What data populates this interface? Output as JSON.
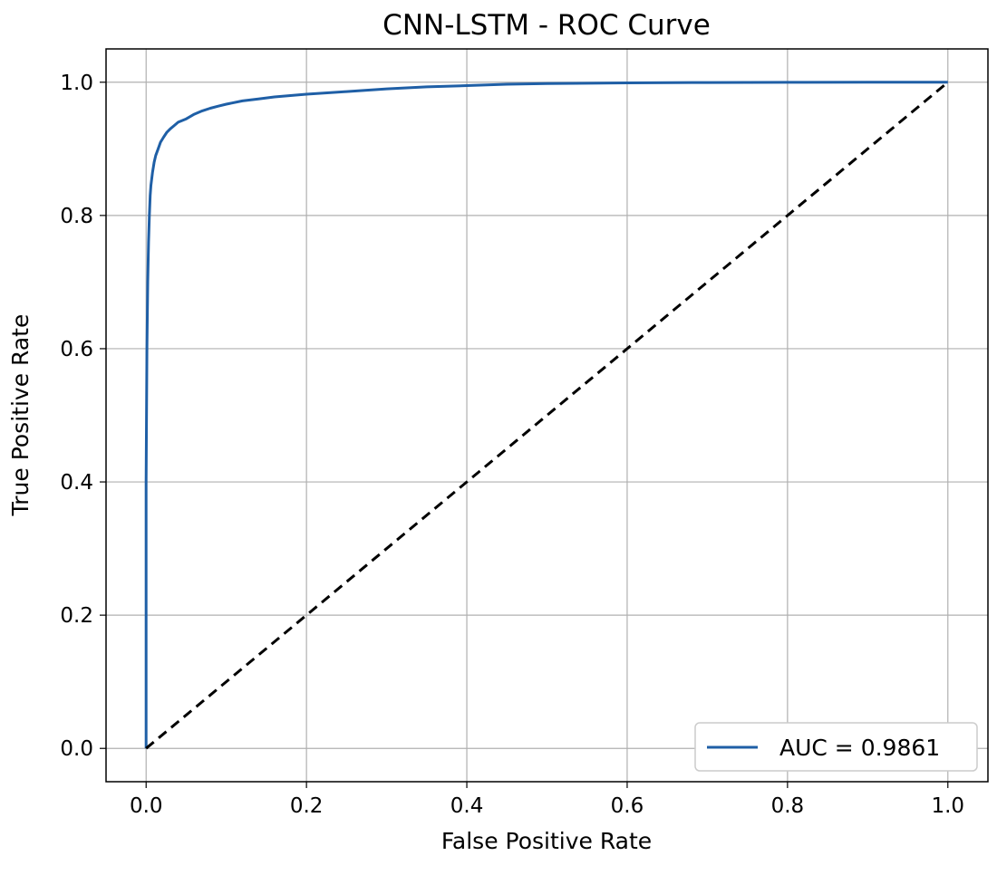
{
  "chart_data": {
    "type": "line",
    "title": "CNN-LSTM - ROC Curve",
    "xlabel": "False Positive Rate",
    "ylabel": "True Positive Rate",
    "xlim": [
      -0.05,
      1.05
    ],
    "ylim": [
      -0.05,
      1.05
    ],
    "xticks": [
      "0.0",
      "0.2",
      "0.4",
      "0.6",
      "0.8",
      "1.0"
    ],
    "yticks": [
      "0.0",
      "0.2",
      "0.4",
      "0.6",
      "0.8",
      "1.0"
    ],
    "grid": true,
    "legend_position": "lower-right",
    "series": [
      {
        "name": "AUC = 0.9861",
        "color": "#1f5fa6",
        "style": "solid",
        "x": [
          0.0,
          0.0,
          0.001,
          0.002,
          0.003,
          0.004,
          0.005,
          0.006,
          0.008,
          0.01,
          0.012,
          0.015,
          0.018,
          0.022,
          0.026,
          0.03,
          0.035,
          0.04,
          0.05,
          0.06,
          0.07,
          0.08,
          0.09,
          0.1,
          0.12,
          0.14,
          0.16,
          0.2,
          0.25,
          0.3,
          0.35,
          0.4,
          0.45,
          0.5,
          0.6,
          0.7,
          0.8,
          0.9,
          1.0
        ],
        "y": [
          0.0,
          0.4,
          0.6,
          0.7,
          0.76,
          0.8,
          0.83,
          0.845,
          0.865,
          0.88,
          0.89,
          0.9,
          0.91,
          0.918,
          0.925,
          0.93,
          0.935,
          0.94,
          0.945,
          0.952,
          0.957,
          0.961,
          0.964,
          0.967,
          0.972,
          0.975,
          0.978,
          0.982,
          0.986,
          0.99,
          0.993,
          0.995,
          0.997,
          0.998,
          0.999,
          0.9995,
          0.9998,
          0.9999,
          1.0
        ]
      },
      {
        "color": "#000000",
        "style": "dashed",
        "x": [
          0.0,
          1.0
        ],
        "y": [
          0.0,
          1.0
        ]
      }
    ]
  }
}
